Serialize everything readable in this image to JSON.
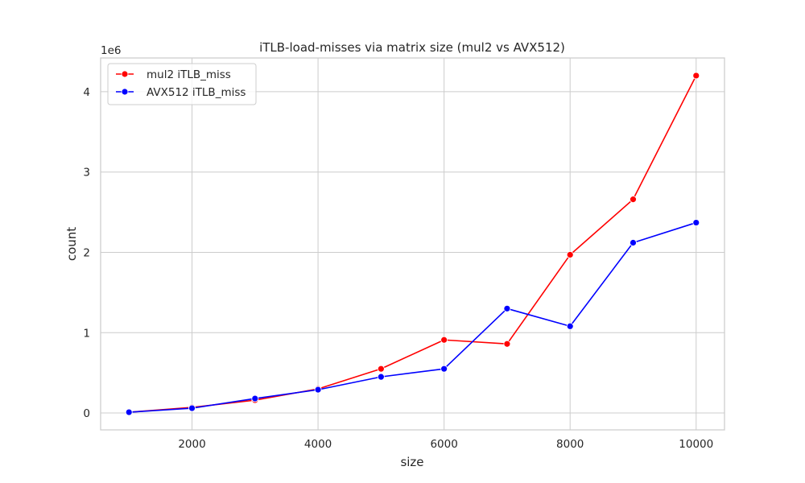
{
  "chart_data": {
    "type": "line",
    "title": "iTLB-load-misses via matrix size (mul2 vs AVX512)",
    "xlabel": "size",
    "ylabel": "count",
    "y_offset_label": "1e6",
    "xlim": [
      550,
      10450
    ],
    "ylim": [
      -0.21,
      4.42
    ],
    "y_scale_factor": 1000000,
    "x_ticks": [
      2000,
      4000,
      6000,
      8000,
      10000
    ],
    "x_tick_labels": [
      "2000",
      "4000",
      "6000",
      "8000",
      "10000"
    ],
    "y_ticks": [
      0,
      1,
      2,
      3,
      4
    ],
    "y_tick_labels": [
      "0",
      "1",
      "2",
      "3",
      "4"
    ],
    "grid": true,
    "legend_position": "top-left",
    "x": [
      1000,
      2000,
      3000,
      4000,
      5000,
      6000,
      7000,
      8000,
      9000,
      10000
    ],
    "series": [
      {
        "name": "mul2 iTLB_miss",
        "color": "#ff0000",
        "values": [
          0.01,
          0.07,
          0.16,
          0.3,
          0.55,
          0.91,
          0.86,
          1.97,
          2.66,
          4.2
        ]
      },
      {
        "name": "AVX512 iTLB_miss",
        "color": "#0000ff",
        "values": [
          0.01,
          0.06,
          0.18,
          0.29,
          0.45,
          0.55,
          1.3,
          1.08,
          2.12,
          2.37
        ]
      }
    ]
  }
}
